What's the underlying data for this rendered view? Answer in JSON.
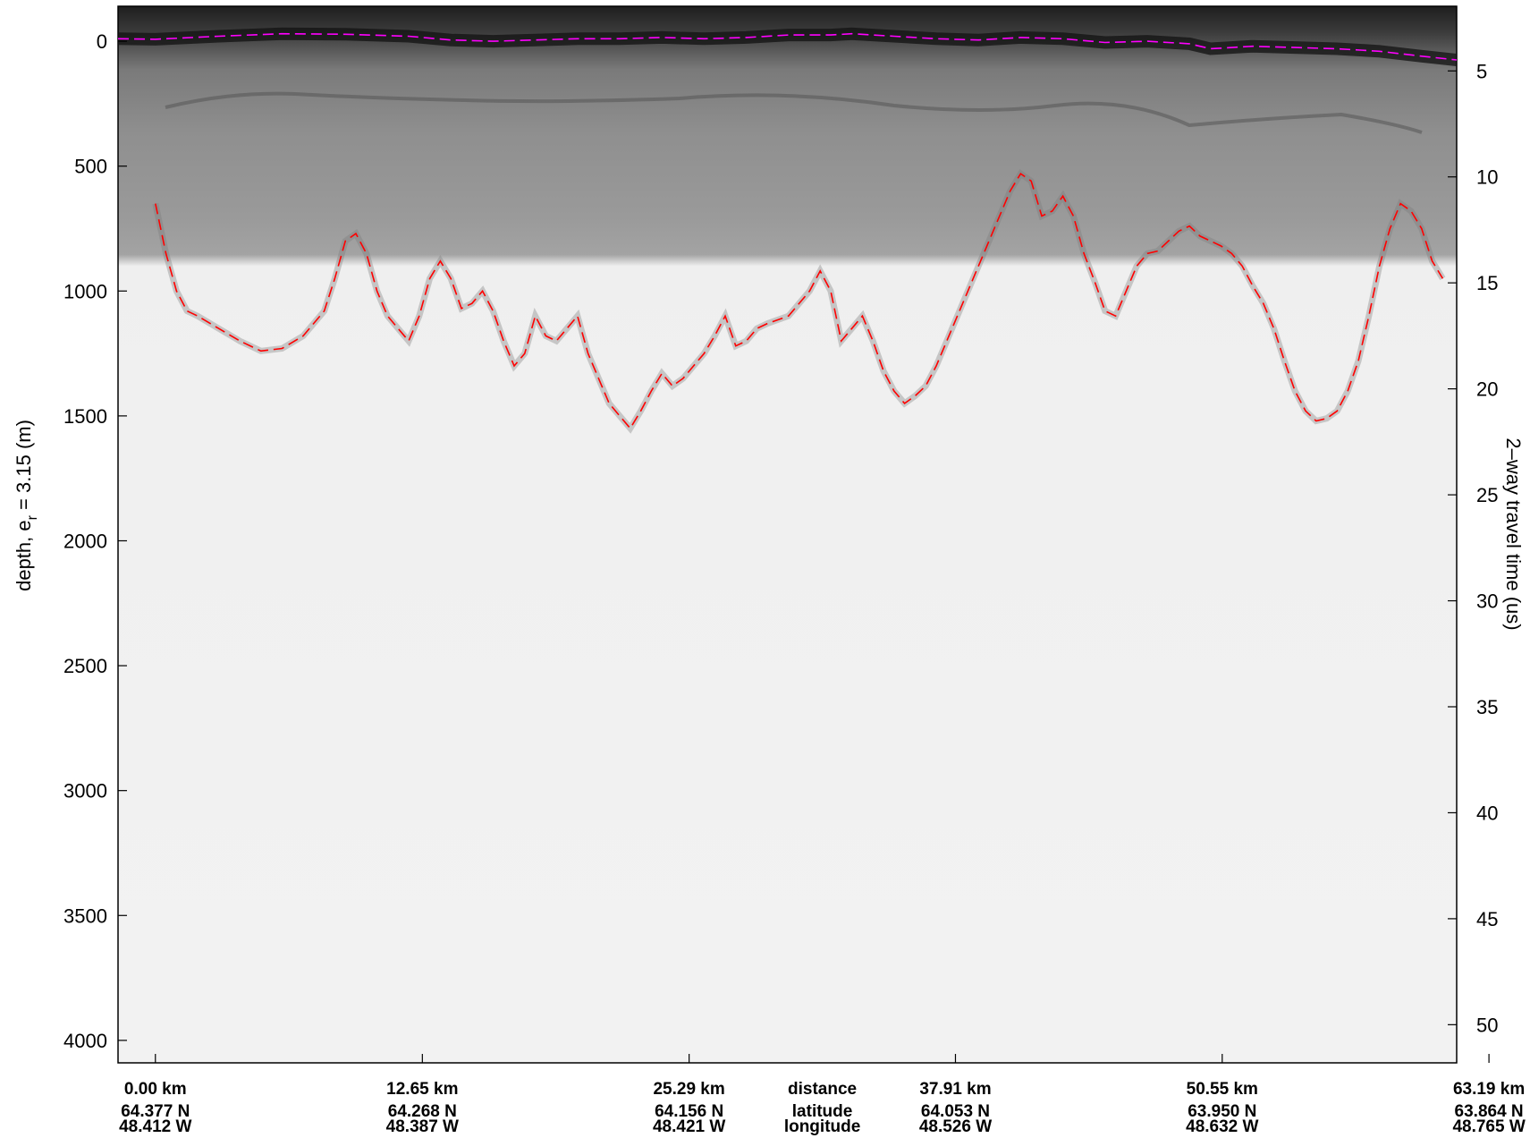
{
  "chart_data": {
    "type": "radar-echogram",
    "left_axis": {
      "label_main": "depth, e",
      "label_sub": "r",
      "label_tail": " = 3.15 (m)",
      "ticks": [
        0,
        500,
        1000,
        1500,
        2000,
        2500,
        3000,
        3500,
        4000
      ],
      "ylim": [
        -140,
        4090
      ],
      "direction": "down"
    },
    "right_axis": {
      "label": "2–way travel time (us)",
      "ticks": [
        5,
        10,
        15,
        20,
        25,
        30,
        35,
        40,
        45,
        50
      ],
      "range": [
        1.95,
        51.8
      ]
    },
    "x_axis": {
      "range_km": [
        -1.77,
        61.66
      ],
      "columns": [
        {
          "km": 0.0,
          "distance": "0.00 km",
          "latitude": "64.377 N",
          "longitude": "48.412 W"
        },
        {
          "km": 12.65,
          "distance": "12.65 km",
          "latitude": "64.268 N",
          "longitude": "48.387 W"
        },
        {
          "km": 25.29,
          "distance": "25.29 km",
          "latitude": "64.156 N",
          "longitude": "48.421 W"
        },
        {
          "km": 37.91,
          "distance": "37.91 km",
          "latitude": "64.053 N",
          "longitude": "48.526 W"
        },
        {
          "km": 50.55,
          "distance": "50.55 km",
          "latitude": "63.950 N",
          "longitude": "48.632 W"
        },
        {
          "km": 63.19,
          "distance": "63.19 km",
          "latitude": "63.864 N",
          "longitude": "48.765 W"
        }
      ],
      "legend_column": {
        "distance": "distance",
        "latitude": "latitude",
        "longitude": "longitude"
      }
    },
    "series": [
      {
        "role": "surface",
        "color": "#ff00ff",
        "style": "dashed",
        "points": [
          [
            -1.77,
            -10
          ],
          [
            0,
            -8
          ],
          [
            3,
            -20
          ],
          [
            6,
            -30
          ],
          [
            9,
            -28
          ],
          [
            12,
            -20
          ],
          [
            14,
            -5
          ],
          [
            16,
            0
          ],
          [
            18,
            -5
          ],
          [
            20,
            -10
          ],
          [
            22,
            -10
          ],
          [
            24,
            -15
          ],
          [
            26,
            -10
          ],
          [
            28,
            -15
          ],
          [
            30,
            -25
          ],
          [
            32,
            -25
          ],
          [
            33,
            -30
          ],
          [
            35,
            -20
          ],
          [
            37,
            -10
          ],
          [
            39,
            -5
          ],
          [
            41,
            -15
          ],
          [
            43,
            -10
          ],
          [
            45,
            5
          ],
          [
            47,
            0
          ],
          [
            49,
            10
          ],
          [
            50,
            30
          ],
          [
            52,
            20
          ],
          [
            54,
            25
          ],
          [
            56,
            30
          ],
          [
            58,
            40
          ],
          [
            60,
            60
          ],
          [
            61.66,
            75
          ]
        ]
      },
      {
        "role": "bed",
        "color": "#ff0000",
        "style": "dashed",
        "points": [
          [
            0,
            650
          ],
          [
            0.5,
            850
          ],
          [
            1,
            1000
          ],
          [
            1.5,
            1080
          ],
          [
            2,
            1100
          ],
          [
            3,
            1150
          ],
          [
            4,
            1200
          ],
          [
            5,
            1240
          ],
          [
            6,
            1230
          ],
          [
            7,
            1180
          ],
          [
            8,
            1080
          ],
          [
            8.5,
            950
          ],
          [
            9,
            800
          ],
          [
            9.5,
            770
          ],
          [
            10,
            850
          ],
          [
            10.5,
            1000
          ],
          [
            11,
            1100
          ],
          [
            11.5,
            1150
          ],
          [
            12,
            1200
          ],
          [
            12.5,
            1100
          ],
          [
            13,
            950
          ],
          [
            13.5,
            880
          ],
          [
            14,
            950
          ],
          [
            14.5,
            1070
          ],
          [
            15,
            1050
          ],
          [
            15.5,
            1000
          ],
          [
            16,
            1080
          ],
          [
            16.5,
            1200
          ],
          [
            17,
            1300
          ],
          [
            17.5,
            1250
          ],
          [
            18,
            1100
          ],
          [
            18.5,
            1180
          ],
          [
            19,
            1200
          ],
          [
            19.5,
            1150
          ],
          [
            20,
            1100
          ],
          [
            20.5,
            1250
          ],
          [
            21,
            1350
          ],
          [
            21.5,
            1450
          ],
          [
            22,
            1500
          ],
          [
            22.5,
            1550
          ],
          [
            23,
            1480
          ],
          [
            23.5,
            1400
          ],
          [
            24,
            1330
          ],
          [
            24.5,
            1380
          ],
          [
            25,
            1350
          ],
          [
            25.5,
            1300
          ],
          [
            26,
            1250
          ],
          [
            26.5,
            1180
          ],
          [
            27,
            1100
          ],
          [
            27.5,
            1220
          ],
          [
            28,
            1200
          ],
          [
            28.5,
            1150
          ],
          [
            29,
            1130
          ],
          [
            30,
            1100
          ],
          [
            31,
            1000
          ],
          [
            31.5,
            920
          ],
          [
            32,
            1000
          ],
          [
            32.5,
            1200
          ],
          [
            33,
            1150
          ],
          [
            33.5,
            1100
          ],
          [
            34,
            1200
          ],
          [
            34.5,
            1320
          ],
          [
            35,
            1400
          ],
          [
            35.5,
            1450
          ],
          [
            36,
            1420
          ],
          [
            36.5,
            1380
          ],
          [
            37,
            1300
          ],
          [
            37.5,
            1200
          ],
          [
            38,
            1100
          ],
          [
            38.5,
            1000
          ],
          [
            39,
            900
          ],
          [
            39.5,
            800
          ],
          [
            40,
            700
          ],
          [
            40.5,
            600
          ],
          [
            41,
            530
          ],
          [
            41.5,
            560
          ],
          [
            42,
            700
          ],
          [
            42.5,
            680
          ],
          [
            43,
            620
          ],
          [
            43.5,
            700
          ],
          [
            44,
            850
          ],
          [
            44.5,
            960
          ],
          [
            45,
            1080
          ],
          [
            45.5,
            1100
          ],
          [
            46,
            1000
          ],
          [
            46.5,
            900
          ],
          [
            47,
            850
          ],
          [
            47.5,
            840
          ],
          [
            48,
            800
          ],
          [
            48.5,
            760
          ],
          [
            49,
            740
          ],
          [
            49.5,
            780
          ],
          [
            50,
            800
          ],
          [
            50.5,
            820
          ],
          [
            51,
            850
          ],
          [
            51.5,
            900
          ],
          [
            52,
            980
          ],
          [
            52.5,
            1050
          ],
          [
            53,
            1150
          ],
          [
            53.5,
            1280
          ],
          [
            54,
            1400
          ],
          [
            54.5,
            1480
          ],
          [
            55,
            1520
          ],
          [
            55.5,
            1510
          ],
          [
            56,
            1480
          ],
          [
            56.5,
            1400
          ],
          [
            57,
            1280
          ],
          [
            57.5,
            1100
          ],
          [
            58,
            900
          ],
          [
            58.5,
            750
          ],
          [
            59,
            650
          ],
          [
            59.5,
            680
          ],
          [
            60,
            750
          ],
          [
            60.5,
            880
          ],
          [
            61,
            950
          ]
        ]
      }
    ],
    "grid": false,
    "legend": "none"
  }
}
